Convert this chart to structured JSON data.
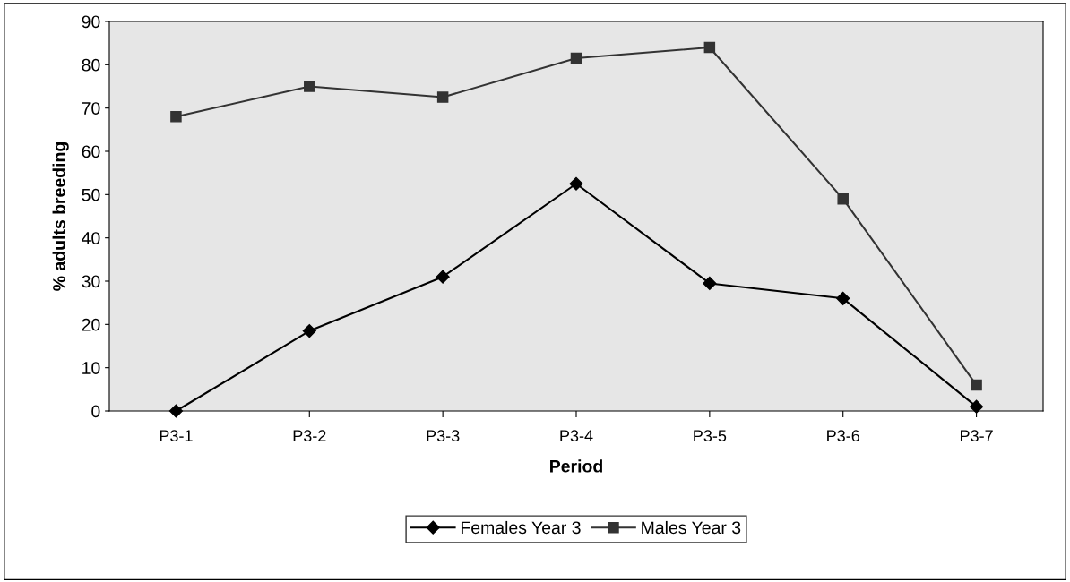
{
  "chart_data": {
    "type": "line",
    "xlabel": "Period",
    "ylabel": "% adults breeding",
    "categories": [
      "P3-1",
      "P3-2",
      "P3-3",
      "P3-4",
      "P3-5",
      "P3-6",
      "P3-7"
    ],
    "series": [
      {
        "name": "Females Year 3",
        "color": "#000000",
        "marker": "diamond",
        "values": [
          0,
          18.5,
          31,
          52.5,
          29.5,
          26,
          1
        ]
      },
      {
        "name": "Males Year 3",
        "color": "#333333",
        "marker": "square",
        "values": [
          68,
          75,
          72.5,
          81.5,
          84,
          49,
          6
        ]
      }
    ],
    "ylim": [
      0,
      90
    ],
    "yticks": [
      0,
      10,
      20,
      30,
      40,
      50,
      60,
      70,
      80,
      90
    ],
    "grid": false,
    "legend": "bottom",
    "line_style": "solid"
  }
}
